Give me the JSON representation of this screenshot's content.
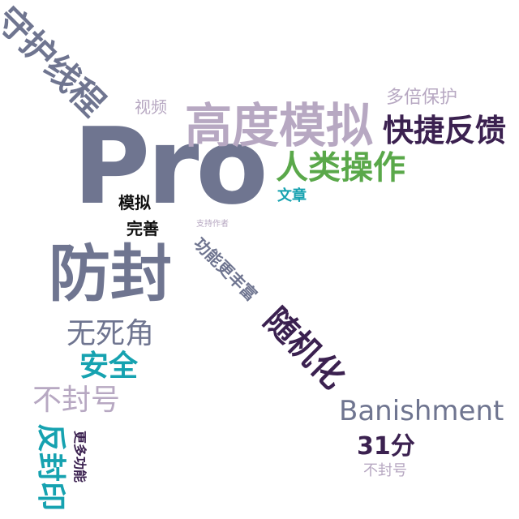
{
  "colors": {
    "slate": "#6f7590",
    "lavender": "#b7a8c2",
    "dark_purple": "#3b2150",
    "teal": "#16a2b0",
    "green": "#5aa84a",
    "black": "#111111"
  },
  "words": [
    {
      "text": "Pro",
      "color": "#6f7590"
    },
    {
      "text": "高度模拟",
      "color": "#b7a8c2"
    },
    {
      "text": "防封",
      "color": "#6f7590"
    },
    {
      "text": "守护线程",
      "color": "#6f7590"
    },
    {
      "text": "快捷反馈",
      "color": "#3b2150"
    },
    {
      "text": "人类操作",
      "color": "#5aa84a"
    },
    {
      "text": "Banishment",
      "color": "#6f7590"
    },
    {
      "text": "随机化",
      "color": "#3b2150"
    },
    {
      "text": "无死角",
      "color": "#6f7590"
    },
    {
      "text": "安全",
      "color": "#16a2b0"
    },
    {
      "text": "不封号",
      "color": "#b7a8c2"
    },
    {
      "text": "反封印",
      "color": "#16a2b0"
    },
    {
      "text": "31分",
      "color": "#3b2150"
    },
    {
      "text": "功能更丰富",
      "color": "#6f7590"
    },
    {
      "text": "多倍保护",
      "color": "#b7a8c2"
    },
    {
      "text": "视频",
      "color": "#b7a8c2"
    },
    {
      "text": "模拟",
      "color": "#111111"
    },
    {
      "text": "完善",
      "color": "#111111"
    },
    {
      "text": "文章",
      "color": "#16a2b0"
    },
    {
      "text": "支持作者",
      "color": "#b7a8c2"
    },
    {
      "text": "更多功能",
      "color": "#3b2150"
    },
    {
      "text": "不封号",
      "color": "#b7a8c2"
    }
  ]
}
